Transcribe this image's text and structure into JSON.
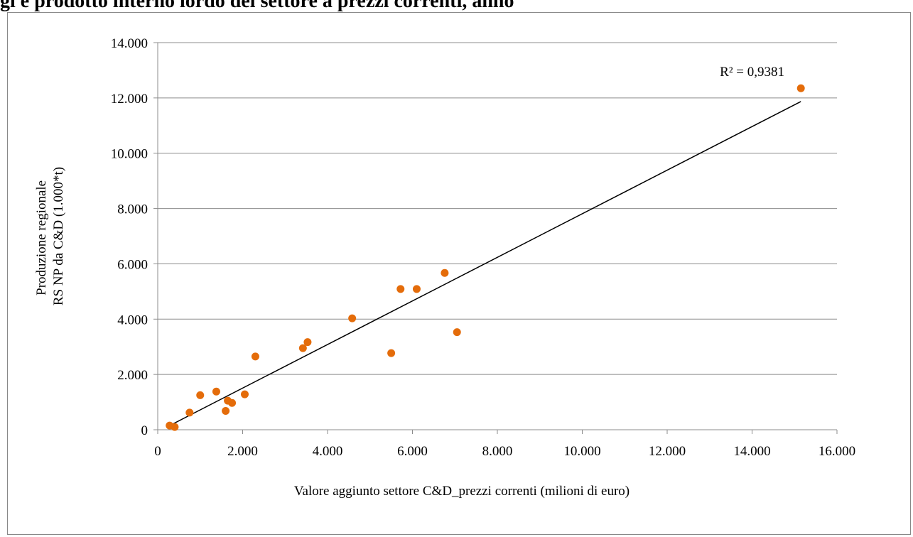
{
  "header": {
    "text": "gi e prodotto interno lordo del settore a prezzi correnti, anno"
  },
  "chart_data": {
    "type": "scatter",
    "title": "",
    "xlabel": "Valore aggiunto settore C&D_prezzi correnti (milioni di euro)",
    "ylabel_lines": [
      "Produzione  regionale",
      "RS NP da C&D (1.000*t)"
    ],
    "xlim": [
      0,
      16000
    ],
    "ylim": [
      0,
      14000
    ],
    "x_ticks": [
      0,
      2000,
      4000,
      6000,
      8000,
      10000,
      12000,
      14000,
      16000
    ],
    "x_tick_labels": [
      "0",
      "2.000",
      "4.000",
      "6.000",
      "8.000",
      "10.000",
      "12.000",
      "14.000",
      "16.000"
    ],
    "y_ticks": [
      0,
      2000,
      4000,
      6000,
      8000,
      10000,
      12000,
      14000
    ],
    "y_tick_labels": [
      "0",
      "2.000",
      "4.000",
      "6.000",
      "8.000",
      "10.000",
      "12.000",
      "14.000"
    ],
    "grid": "horizontal",
    "marker_color": "#E46C0A",
    "trendline_color": "#000000",
    "r2_label": "R² = 0,9381",
    "points": [
      {
        "x": 280,
        "y": 150
      },
      {
        "x": 400,
        "y": 100
      },
      {
        "x": 750,
        "y": 620
      },
      {
        "x": 1000,
        "y": 1250
      },
      {
        "x": 1380,
        "y": 1380
      },
      {
        "x": 1600,
        "y": 680
      },
      {
        "x": 1650,
        "y": 1050
      },
      {
        "x": 1750,
        "y": 970
      },
      {
        "x": 2050,
        "y": 1280
      },
      {
        "x": 2300,
        "y": 2650
      },
      {
        "x": 3420,
        "y": 2950
      },
      {
        "x": 3530,
        "y": 3170
      },
      {
        "x": 4580,
        "y": 4030
      },
      {
        "x": 5500,
        "y": 2770
      },
      {
        "x": 5720,
        "y": 5090
      },
      {
        "x": 6100,
        "y": 5090
      },
      {
        "x": 6760,
        "y": 5670
      },
      {
        "x": 7050,
        "y": 3530
      },
      {
        "x": 15150,
        "y": 12350
      }
    ],
    "trendline": {
      "x_start": 280,
      "y_start": 150,
      "x_end": 15150,
      "y_end": 11870
    }
  }
}
